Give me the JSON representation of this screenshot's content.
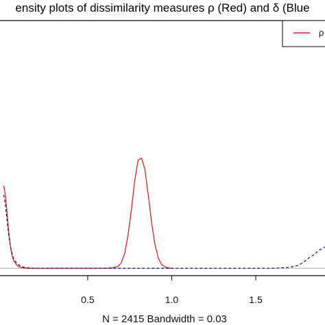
{
  "chart_data": {
    "type": "line",
    "title": "ensity plots of dissimilarity measures ρ (Red) and δ (Blue",
    "xlabel": "N = 2415   Bandwidth = 0.03",
    "ylabel": "",
    "xlim": [
      -0.03,
      1.92
    ],
    "ylim": [
      -0.4,
      13.5
    ],
    "x_ticks": [
      0.5,
      1.0,
      1.5
    ],
    "x_tick_labels": [
      "0.5",
      "1.0",
      "1.5"
    ],
    "baseline": 0,
    "grid": false,
    "legend_position": "top-right",
    "legend_entries": [
      "ρ"
    ],
    "series": [
      {
        "name": "ρ",
        "color": "#cc2222",
        "style": "solid",
        "x": [
          0.0,
          0.01,
          0.02,
          0.03,
          0.04,
          0.05,
          0.06,
          0.08,
          0.1,
          0.12,
          0.15,
          0.2,
          0.3,
          0.5,
          0.6,
          0.65,
          0.68,
          0.7,
          0.72,
          0.74,
          0.76,
          0.78,
          0.8,
          0.82,
          0.84,
          0.86,
          0.88,
          0.9,
          0.92,
          0.94,
          0.96,
          0.98,
          1.0
        ],
        "y": [
          4.5,
          4.0,
          3.0,
          2.0,
          1.2,
          0.7,
          0.4,
          0.15,
          0.05,
          0.02,
          0.0,
          0.0,
          0.0,
          0.0,
          0.0,
          0.03,
          0.1,
          0.3,
          0.8,
          1.8,
          3.2,
          4.8,
          5.9,
          6.0,
          5.4,
          4.0,
          2.5,
          1.3,
          0.55,
          0.2,
          0.07,
          0.02,
          0.0
        ]
      },
      {
        "name": "",
        "color": "#22227a",
        "style": "dashed",
        "x": [
          0.0,
          0.01,
          0.02,
          0.03,
          0.04,
          0.05,
          0.06,
          0.08,
          0.1,
          0.12,
          0.15,
          0.2,
          0.25,
          0.3,
          1.6,
          1.7,
          1.75,
          1.78,
          1.8,
          1.82,
          1.84,
          1.86,
          1.88,
          1.9,
          1.92
        ],
        "y": [
          4.0,
          3.5,
          2.6,
          1.8,
          1.2,
          0.8,
          0.5,
          0.25,
          0.12,
          0.06,
          0.02,
          0.0,
          0.0,
          0.0,
          0.0,
          0.05,
          0.15,
          0.3,
          0.45,
          0.6,
          0.7,
          0.85,
          1.0,
          1.1,
          1.2
        ]
      }
    ]
  }
}
